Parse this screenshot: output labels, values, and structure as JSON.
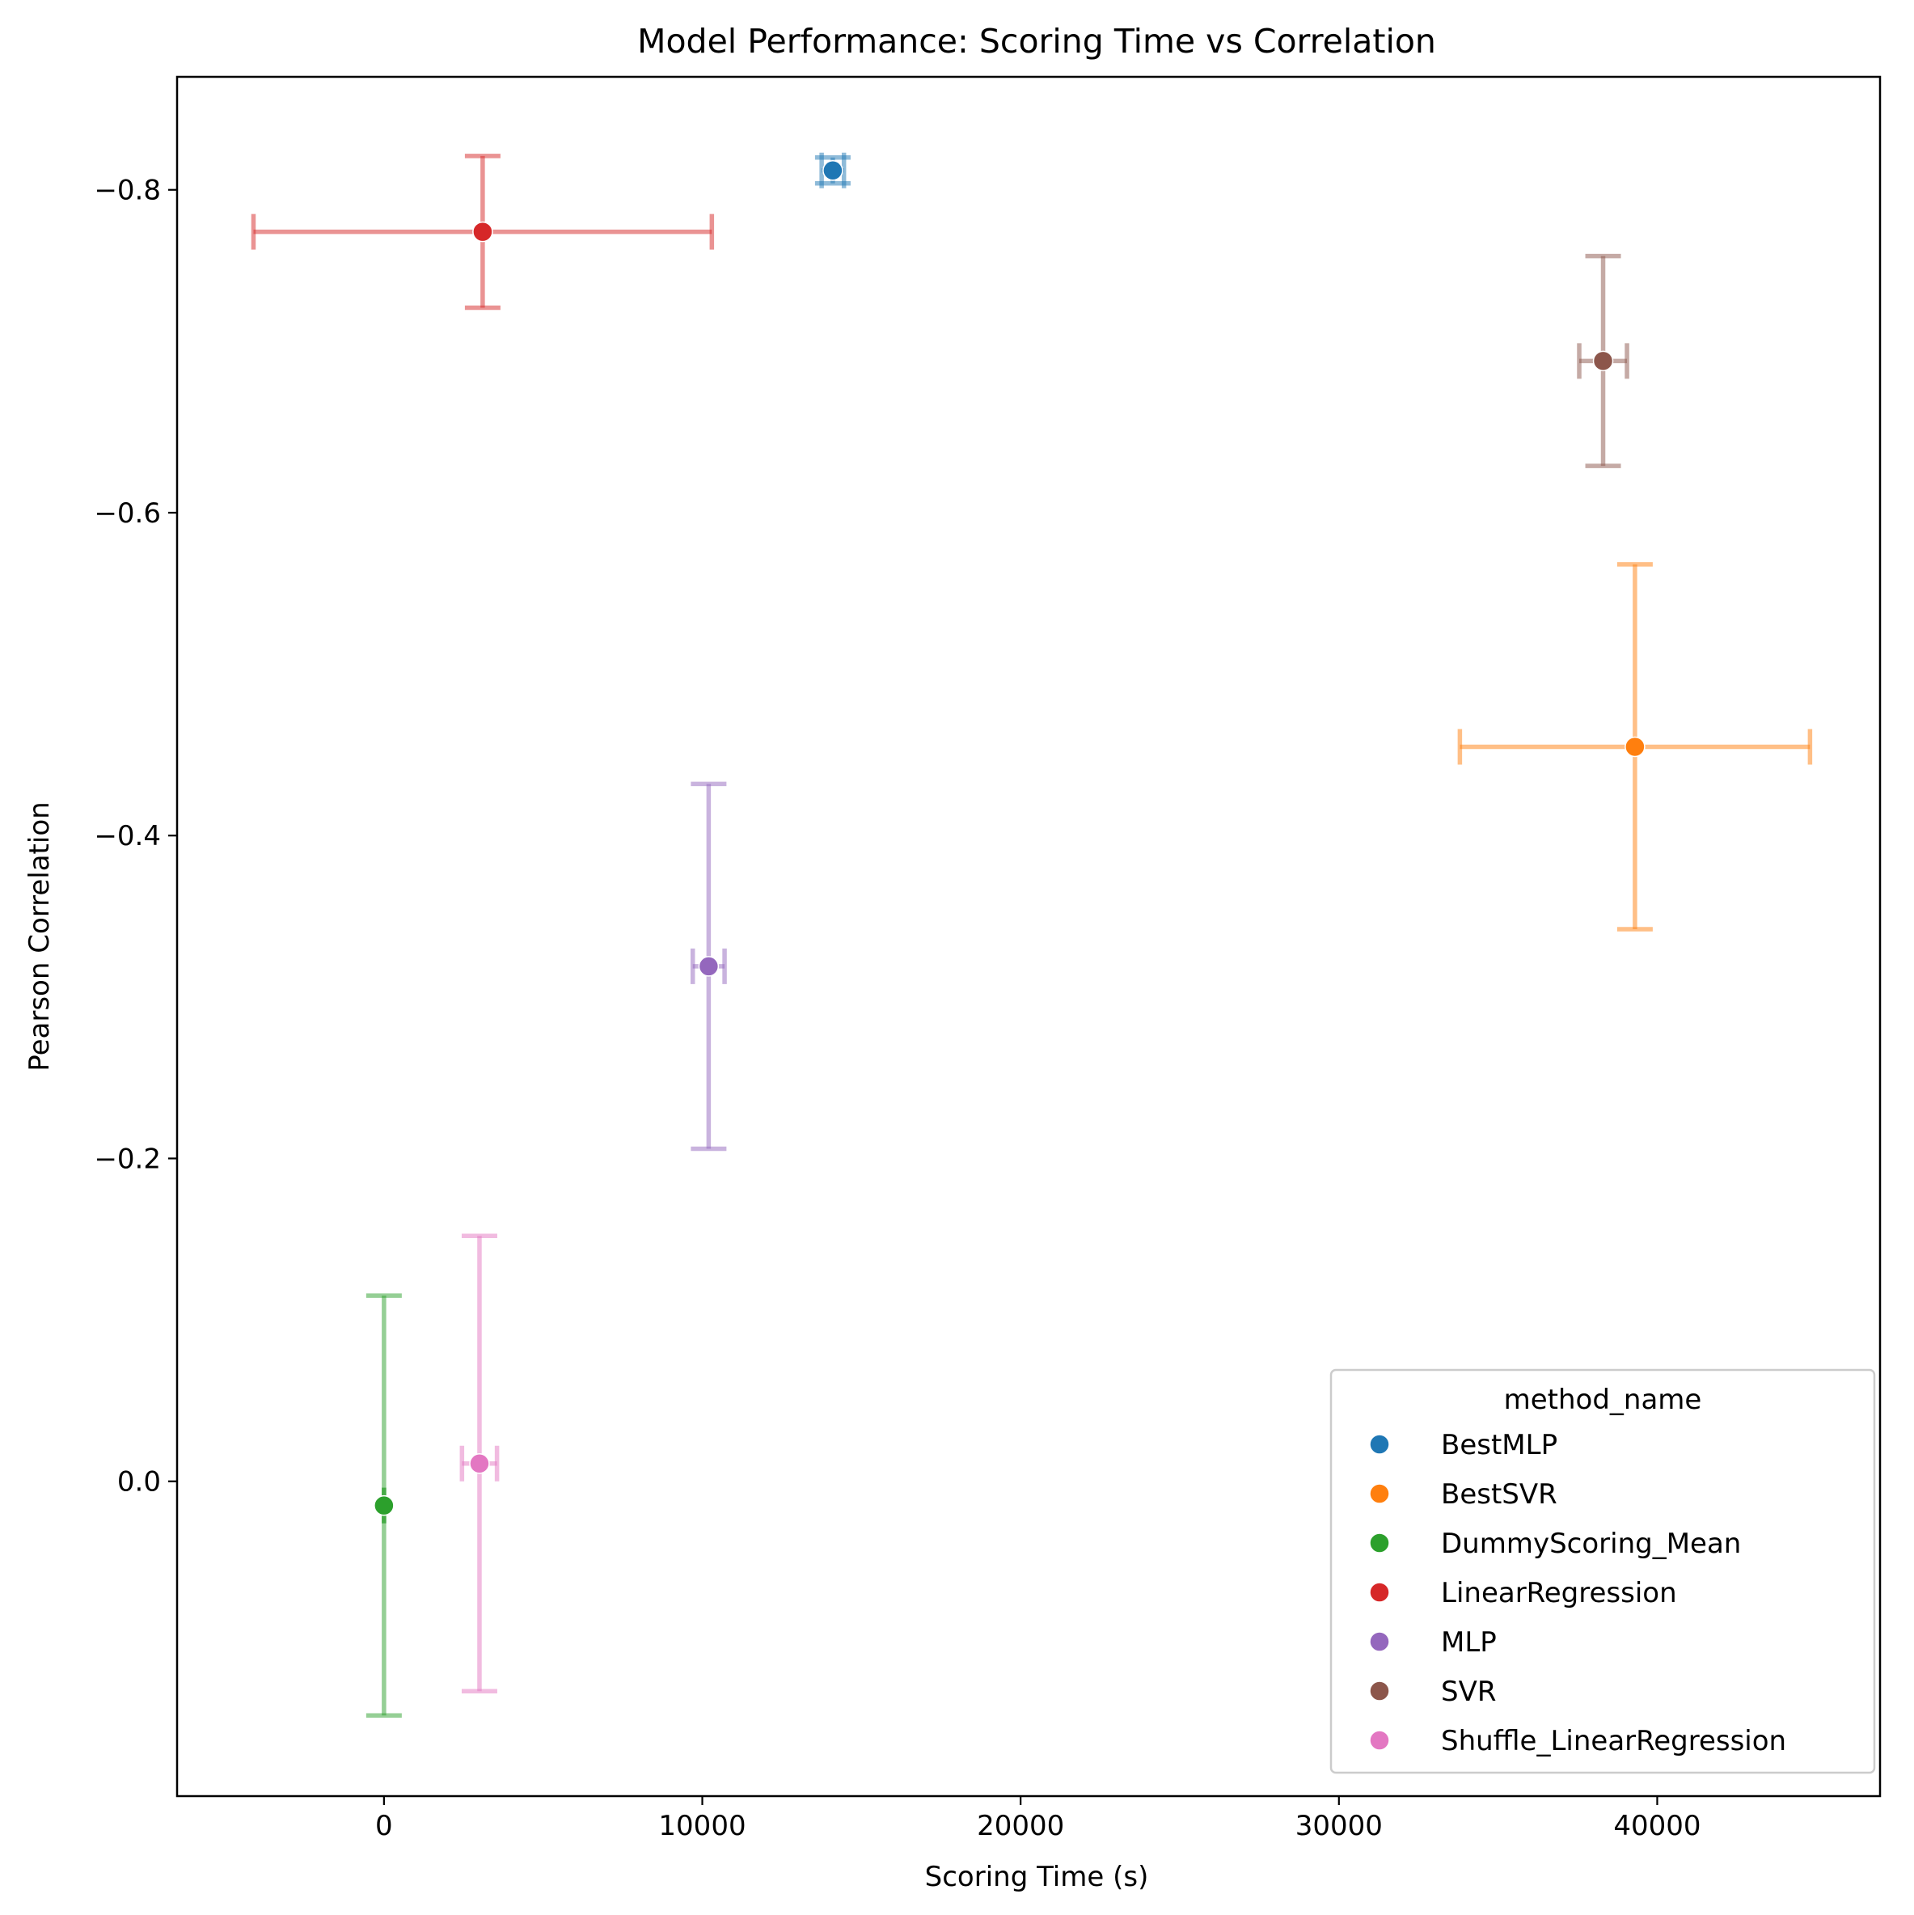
{
  "chart_data": {
    "type": "scatter",
    "title": "Model Performance: Scoring Time vs Correlation",
    "xlabel": "Scoring Time (s)",
    "ylabel": "Pearson Correlation",
    "xlim": [
      -6500,
      47000
    ],
    "ylim": [
      0.195,
      -0.87
    ],
    "y_inverted": true,
    "x_ticks": [
      {
        "value": 0,
        "label": "0"
      },
      {
        "value": 10000,
        "label": "10000"
      },
      {
        "value": 20000,
        "label": "20000"
      },
      {
        "value": 30000,
        "label": "30000"
      },
      {
        "value": 40000,
        "label": "40000"
      }
    ],
    "y_ticks": [
      {
        "value": -0.8,
        "label": "−0.8"
      },
      {
        "value": -0.6,
        "label": "−0.6"
      },
      {
        "value": -0.4,
        "label": "−0.4"
      },
      {
        "value": -0.2,
        "label": "−0.2"
      },
      {
        "value": 0.0,
        "label": "0.0"
      }
    ],
    "grid": false,
    "legend": {
      "title": "method_name",
      "position": "lower-right"
    },
    "series": [
      {
        "name": "BestMLP",
        "color": "#1f77b4",
        "x": 14100,
        "y": -0.812,
        "x_err": 350,
        "y_err": 0.008
      },
      {
        "name": "BestSVR",
        "color": "#ff7f0e",
        "x": 39300,
        "y": -0.455,
        "x_err": 5500,
        "y_err": 0.113
      },
      {
        "name": "DummyScoring_Mean",
        "color": "#2ca02c",
        "x": 0,
        "y": 0.015,
        "x_err": 0,
        "y_err": 0.13
      },
      {
        "name": "LinearRegression",
        "color": "#d62728",
        "x": 3100,
        "y": -0.774,
        "x_err": 7200,
        "y_err": 0.047
      },
      {
        "name": "MLP",
        "color": "#9467bd",
        "x": 10200,
        "y": -0.319,
        "x_err": 500,
        "y_err": 0.113
      },
      {
        "name": "SVR",
        "color": "#8c564b",
        "x": 38300,
        "y": -0.694,
        "x_err": 750,
        "y_err": 0.065
      },
      {
        "name": "Shuffle_LinearRegression",
        "color": "#e377c2",
        "x": 3000,
        "y": -0.011,
        "x_err": 550,
        "y_err": 0.141
      }
    ]
  }
}
